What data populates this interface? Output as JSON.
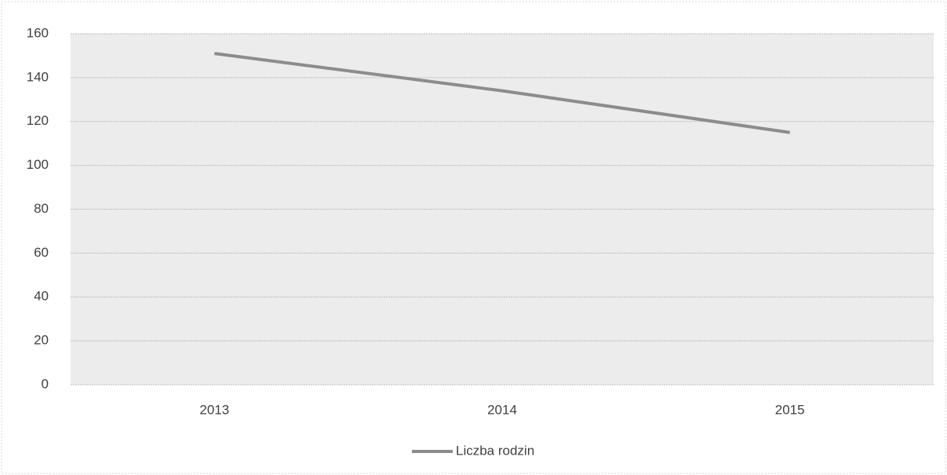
{
  "chart_data": {
    "type": "line",
    "categories": [
      "2013",
      "2014",
      "2015"
    ],
    "series": [
      {
        "name": "Liczba rodzin",
        "color": "#8c8c8c",
        "values": [
          151,
          134,
          115
        ]
      }
    ],
    "ylim": [
      0,
      160
    ],
    "yticks": [
      0,
      20,
      40,
      60,
      80,
      100,
      120,
      140,
      160
    ],
    "grid": true,
    "legend": "bottom"
  }
}
